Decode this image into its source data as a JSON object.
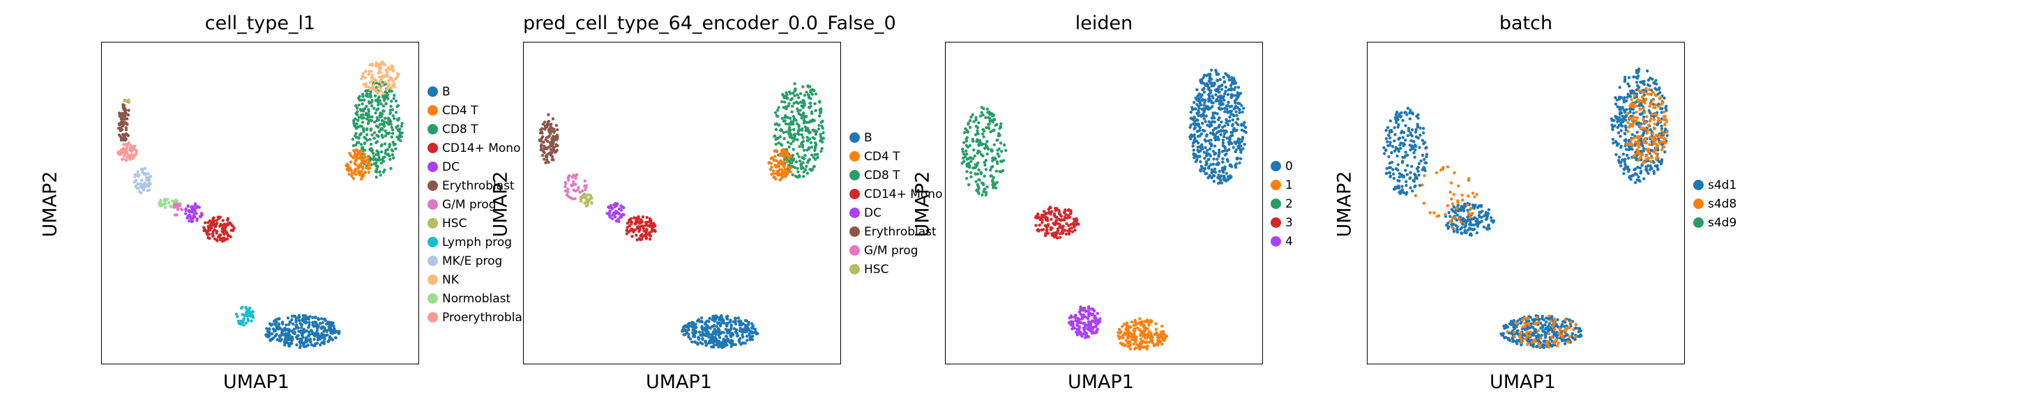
{
  "chart_data": [
    {
      "type": "scatter",
      "title": "cell_type_l1",
      "xlabel": "UMAP1",
      "ylabel": "UMAP2",
      "legend_position": "right",
      "legend": [
        {
          "label": "B",
          "color": "#1f77b4"
        },
        {
          "label": "CD4 T",
          "color": "#ff7f0e"
        },
        {
          "label": "CD8 T",
          "color": "#279e68"
        },
        {
          "label": "CD14+ Mono",
          "color": "#d62728"
        },
        {
          "label": "DC",
          "color": "#aa40fc"
        },
        {
          "label": "Erythroblast",
          "color": "#8c564b"
        },
        {
          "label": "G/M prog",
          "color": "#e377c2"
        },
        {
          "label": "HSC",
          "color": "#b5bd61"
        },
        {
          "label": "Lymph prog",
          "color": "#17becf"
        },
        {
          "label": "MK/E prog",
          "color": "#aec7e8"
        },
        {
          "label": "NK",
          "color": "#ffbb78"
        },
        {
          "label": "Normoblast",
          "color": "#98df8a"
        },
        {
          "label": "Proerythroblast",
          "color": "#ff9896"
        }
      ],
      "clusters": [
        {
          "label": "B",
          "cx": 0.63,
          "cy": 0.1,
          "rx": 0.12,
          "ry": 0.05,
          "n": 320
        },
        {
          "label": "Lymph prog",
          "cx": 0.45,
          "cy": 0.15,
          "rx": 0.03,
          "ry": 0.03,
          "n": 50
        },
        {
          "label": "CD8 T",
          "cx": 0.87,
          "cy": 0.73,
          "rx": 0.08,
          "ry": 0.15,
          "n": 320
        },
        {
          "label": "NK",
          "cx": 0.88,
          "cy": 0.89,
          "rx": 0.06,
          "ry": 0.05,
          "n": 110
        },
        {
          "label": "CD4 T",
          "cx": 0.81,
          "cy": 0.62,
          "rx": 0.04,
          "ry": 0.05,
          "n": 90
        },
        {
          "label": "CD14+ Mono",
          "cx": 0.37,
          "cy": 0.42,
          "rx": 0.05,
          "ry": 0.04,
          "n": 100
        },
        {
          "label": "DC",
          "cx": 0.29,
          "cy": 0.47,
          "rx": 0.03,
          "ry": 0.03,
          "n": 45
        },
        {
          "label": "MK/E prog",
          "cx": 0.13,
          "cy": 0.57,
          "rx": 0.03,
          "ry": 0.04,
          "n": 55
        },
        {
          "label": "Normoblast",
          "cx": 0.21,
          "cy": 0.5,
          "rx": 0.03,
          "ry": 0.02,
          "n": 30
        },
        {
          "label": "Proerythroblast",
          "cx": 0.08,
          "cy": 0.66,
          "rx": 0.03,
          "ry": 0.03,
          "n": 60
        },
        {
          "label": "Erythroblast",
          "cx": 0.07,
          "cy": 0.75,
          "rx": 0.02,
          "ry": 0.06,
          "n": 70
        },
        {
          "label": "HSC",
          "cx": 0.08,
          "cy": 0.82,
          "rx": 0.01,
          "ry": 0.01,
          "n": 10
        },
        {
          "label": "G/M prog",
          "cx": 0.24,
          "cy": 0.48,
          "rx": 0.02,
          "ry": 0.02,
          "n": 15
        }
      ]
    },
    {
      "type": "scatter",
      "title": "pred_cell_type_64_encoder_0.0_False_0",
      "xlabel": "UMAP1",
      "ylabel": "UMAP2",
      "legend_position": "right",
      "legend": [
        {
          "label": "B",
          "color": "#1f77b4"
        },
        {
          "label": "CD4 T",
          "color": "#ff7f0e"
        },
        {
          "label": "CD8 T",
          "color": "#279e68"
        },
        {
          "label": "CD14+ Mono",
          "color": "#d62728"
        },
        {
          "label": "DC",
          "color": "#aa40fc"
        },
        {
          "label": "Erythroblast",
          "color": "#8c564b"
        },
        {
          "label": "G/M prog",
          "color": "#e377c2"
        },
        {
          "label": "HSC",
          "color": "#b5bd61"
        }
      ],
      "clusters": [
        {
          "label": "B",
          "cx": 0.62,
          "cy": 0.1,
          "rx": 0.12,
          "ry": 0.05,
          "n": 340
        },
        {
          "label": "CD8 T",
          "cx": 0.87,
          "cy": 0.73,
          "rx": 0.08,
          "ry": 0.15,
          "n": 320
        },
        {
          "label": "CD4 T",
          "cx": 0.81,
          "cy": 0.62,
          "rx": 0.04,
          "ry": 0.05,
          "n": 90
        },
        {
          "label": "CD14+ Mono",
          "cx": 0.37,
          "cy": 0.42,
          "rx": 0.05,
          "ry": 0.04,
          "n": 100
        },
        {
          "label": "DC",
          "cx": 0.29,
          "cy": 0.47,
          "rx": 0.03,
          "ry": 0.03,
          "n": 45
        },
        {
          "label": "Erythroblast",
          "cx": 0.08,
          "cy": 0.7,
          "rx": 0.03,
          "ry": 0.08,
          "n": 110
        },
        {
          "label": "G/M prog",
          "cx": 0.16,
          "cy": 0.55,
          "rx": 0.04,
          "ry": 0.04,
          "n": 40
        },
        {
          "label": "HSC",
          "cx": 0.2,
          "cy": 0.51,
          "rx": 0.02,
          "ry": 0.02,
          "n": 25
        }
      ]
    },
    {
      "type": "scatter",
      "title": "leiden",
      "xlabel": "UMAP1",
      "ylabel": "UMAP2",
      "legend_position": "right",
      "legend": [
        {
          "label": "0",
          "color": "#1f77b4"
        },
        {
          "label": "1",
          "color": "#ff7f0e"
        },
        {
          "label": "2",
          "color": "#279e68"
        },
        {
          "label": "3",
          "color": "#d62728"
        },
        {
          "label": "4",
          "color": "#aa40fc"
        }
      ],
      "clusters": [
        {
          "label": "0",
          "cx": 0.86,
          "cy": 0.74,
          "rx": 0.09,
          "ry": 0.18,
          "n": 520
        },
        {
          "label": "1",
          "cx": 0.62,
          "cy": 0.09,
          "rx": 0.08,
          "ry": 0.05,
          "n": 200
        },
        {
          "label": "4",
          "cx": 0.44,
          "cy": 0.13,
          "rx": 0.05,
          "ry": 0.05,
          "n": 140
        },
        {
          "label": "2",
          "cx": 0.12,
          "cy": 0.66,
          "rx": 0.07,
          "ry": 0.14,
          "n": 210
        },
        {
          "label": "3",
          "cx": 0.35,
          "cy": 0.44,
          "rx": 0.07,
          "ry": 0.05,
          "n": 140
        }
      ]
    },
    {
      "type": "scatter",
      "title": "batch",
      "xlabel": "UMAP1",
      "ylabel": "UMAP2",
      "legend_position": "right",
      "legend": [
        {
          "label": "s4d1",
          "color": "#1f77b4"
        },
        {
          "label": "s4d8",
          "color": "#ff7f0e"
        },
        {
          "label": "s4d9",
          "color": "#279e68"
        }
      ],
      "clusters": [
        {
          "label": "s4d1",
          "cx": 0.86,
          "cy": 0.74,
          "rx": 0.09,
          "ry": 0.18,
          "n": 380
        },
        {
          "label": "s4d8",
          "cx": 0.88,
          "cy": 0.74,
          "rx": 0.07,
          "ry": 0.12,
          "n": 170
        },
        {
          "label": "s4d1",
          "cx": 0.55,
          "cy": 0.1,
          "rx": 0.13,
          "ry": 0.05,
          "n": 300
        },
        {
          "label": "s4d8",
          "cx": 0.55,
          "cy": 0.1,
          "rx": 0.12,
          "ry": 0.05,
          "n": 80
        },
        {
          "label": "s4d1",
          "cx": 0.12,
          "cy": 0.66,
          "rx": 0.07,
          "ry": 0.14,
          "n": 200
        },
        {
          "label": "s4d1",
          "cx": 0.32,
          "cy": 0.45,
          "rx": 0.08,
          "ry": 0.05,
          "n": 150
        },
        {
          "label": "s4d8",
          "cx": 0.25,
          "cy": 0.52,
          "rx": 0.1,
          "ry": 0.1,
          "n": 45
        }
      ]
    }
  ]
}
